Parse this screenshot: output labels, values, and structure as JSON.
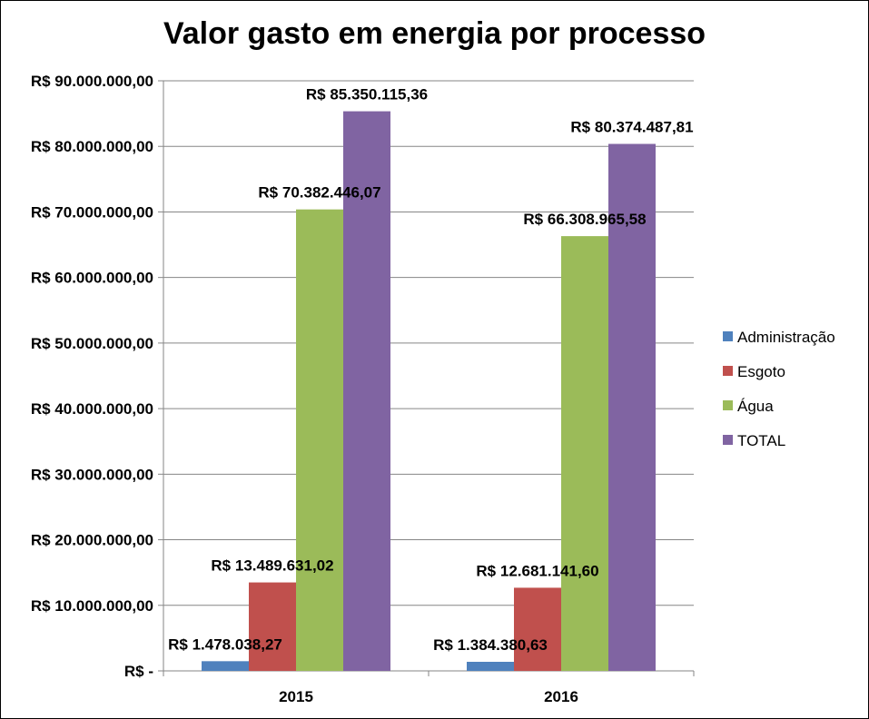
{
  "chart_data": {
    "type": "bar",
    "title": "Valor gasto em energia por processo",
    "xlabel": "",
    "ylabel": "",
    "categories": [
      "2015",
      "2016"
    ],
    "ylim": [
      0,
      90000000
    ],
    "ytick_values": [
      0,
      10000000,
      20000000,
      30000000,
      40000000,
      50000000,
      60000000,
      70000000,
      80000000,
      90000000
    ],
    "ytick_labels": [
      "R$ -",
      "R$ 10.000.000,00",
      "R$ 20.000.000,00",
      "R$ 30.000.000,00",
      "R$ 40.000.000,00",
      "R$ 50.000.000,00",
      "R$ 60.000.000,00",
      "R$ 70.000.000,00",
      "R$ 80.000.000,00",
      "R$ 90.000.000,00"
    ],
    "grid": true,
    "legend_position": "right",
    "series": [
      {
        "name": "Administração",
        "color": "#4F81BD",
        "values": [
          1478038.27,
          1384380.63
        ],
        "labels": [
          "R$ 1.478.038,27",
          "R$ 1.384.380,63"
        ]
      },
      {
        "name": "Esgoto",
        "color": "#C0504D",
        "values": [
          13489631.02,
          12681141.6
        ],
        "labels": [
          "R$ 13.489.631,02",
          "R$ 12.681.141,60"
        ]
      },
      {
        "name": "Água",
        "color": "#9BBB59",
        "values": [
          70382446.07,
          66308965.58
        ],
        "labels": [
          "R$ 70.382.446,07",
          "R$ 66.308.965,58"
        ]
      },
      {
        "name": "TOTAL",
        "color": "#8064A2",
        "values": [
          85350115.36,
          80374487.81
        ],
        "labels": [
          "R$ 85.350.115,36",
          "R$ 80.374.487,81"
        ]
      }
    ]
  }
}
